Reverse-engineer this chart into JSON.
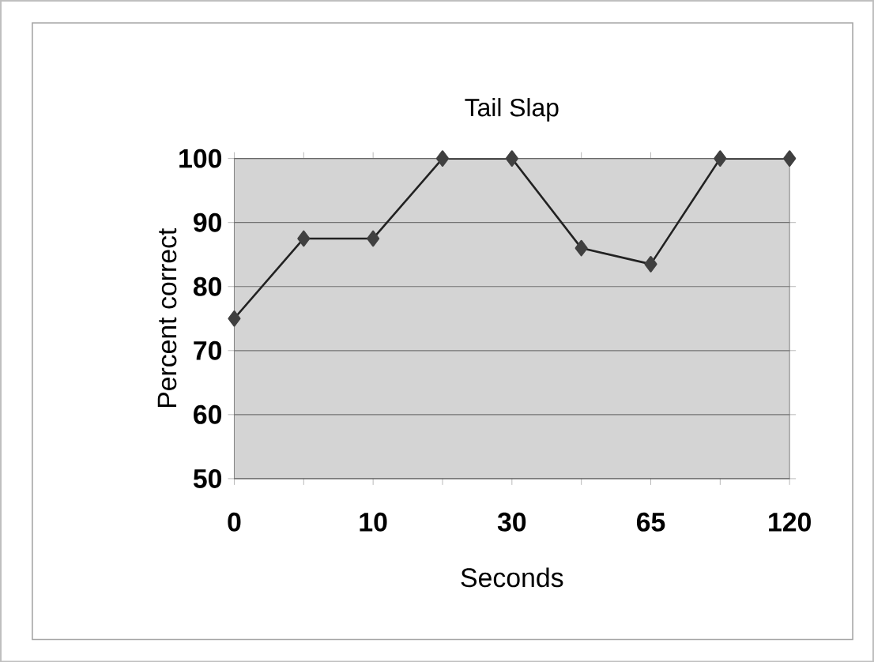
{
  "chart_data": {
    "type": "line",
    "title": "Tail Slap",
    "xlabel": "Seconds",
    "ylabel": "Percent correct",
    "categories": [
      "0",
      null,
      "10",
      null,
      "30",
      null,
      "65",
      null,
      "120"
    ],
    "values": [
      75,
      87.5,
      87.5,
      100,
      100,
      86,
      83.5,
      100,
      100
    ],
    "color": "#222222",
    "marker": "diamond",
    "line_style": "solid",
    "ylim": [
      50,
      100
    ],
    "yticks": [
      50,
      60,
      70,
      80,
      90,
      100
    ],
    "grid": "y"
  }
}
